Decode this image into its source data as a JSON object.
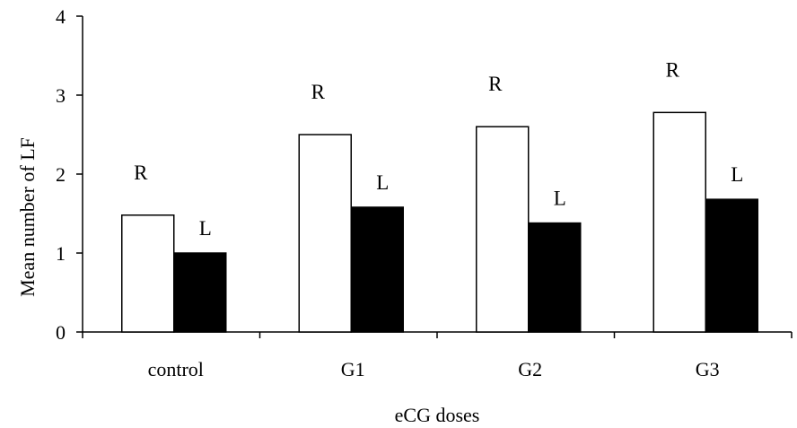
{
  "chart_data": {
    "type": "bar",
    "title": "",
    "xlabel": "eCG doses",
    "ylabel": "Mean number of LF",
    "ylim": [
      0,
      4
    ],
    "yticks": [
      "0",
      "1",
      "2",
      "3",
      "4"
    ],
    "categories": [
      "control",
      "G1",
      "G2",
      "G3"
    ],
    "series": [
      {
        "label": "R",
        "values": [
          1.48,
          2.5,
          2.6,
          2.78
        ],
        "fill": "#ffffff",
        "stroke": "#000000"
      },
      {
        "label": "L",
        "values": [
          1.0,
          1.58,
          1.38,
          1.68
        ],
        "fill": "#000000",
        "stroke": "#000000"
      }
    ],
    "grid": false,
    "legend": "none"
  }
}
